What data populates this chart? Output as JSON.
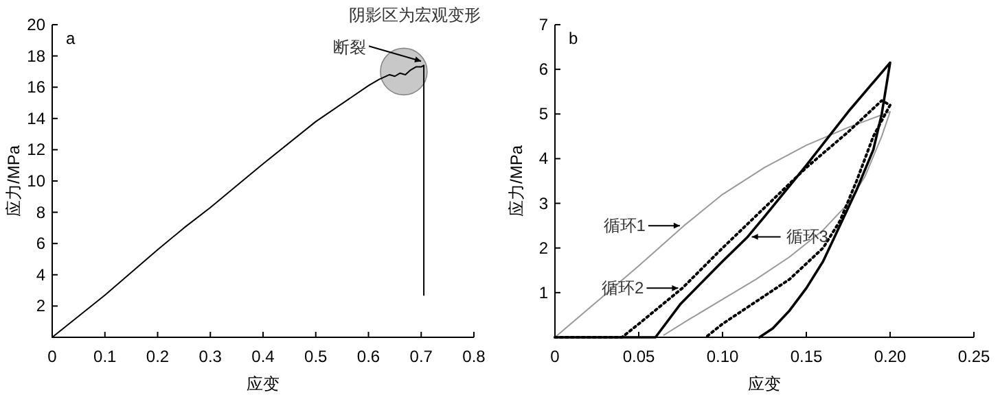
{
  "chart_data": [
    {
      "type": "line",
      "xlabel": "应变",
      "ylabel": "应力/MPa",
      "xlim": [
        0,
        0.8
      ],
      "ylim": [
        0,
        20
      ],
      "xticks": [
        {
          "value": 0,
          "label": "0"
        },
        0.1,
        0.2,
        0.3,
        0.4,
        0.5,
        0.6,
        0.7,
        0.8
      ],
      "yticks": [
        {
          "value": 0,
          "label": null
        },
        2,
        4,
        6,
        8,
        10,
        12,
        14,
        16,
        18,
        20
      ],
      "grid": false,
      "series": [
        {
          "color": "#000000",
          "line_style": "solid",
          "x": [
            0,
            0.1,
            0.2,
            0.25,
            0.3,
            0.4,
            0.5,
            0.6,
            0.62,
            0.64,
            0.65,
            0.66,
            0.67,
            0.68,
            0.69,
            0.7,
            0.705,
            0.705
          ],
          "values": [
            0,
            2.7,
            5.6,
            7,
            8.3,
            11.1,
            13.8,
            16.1,
            16.5,
            16.8,
            16.7,
            16.9,
            16.8,
            17.1,
            17.3,
            17.3,
            17.4,
            2.7
          ]
        }
      ],
      "annotations": [
        "a",
        {
          "text": "阴影区为宏观变形",
          "x": 0.667,
          "y": 17
        },
        {
          "text": "断裂",
          "x": 0.705,
          "y": 17.4
        }
      ]
    },
    {
      "type": "line",
      "xlabel": "应变",
      "ylabel": "应力/MPa",
      "xlim": [
        0,
        0.25
      ],
      "ylim": [
        0,
        7
      ],
      "xticks": [
        {
          "value": 0,
          "label": "0"
        },
        {
          "value": 0.05,
          "label": "0.05"
        },
        {
          "value": 0.1,
          "label": "0.10"
        },
        {
          "value": 0.15,
          "label": "0.15"
        },
        {
          "value": 0.2,
          "label": "0.20"
        },
        {
          "value": 0.25,
          "label": "0.25"
        }
      ],
      "yticks": [
        {
          "value": 0,
          "label": null
        },
        1,
        2,
        3,
        4,
        5,
        6,
        7
      ],
      "grid": false,
      "series": [
        {
          "color": "#999999",
          "line_style": "solid",
          "x": [
            0,
            0.025,
            0.05,
            0.077,
            0.1,
            0.125,
            0.15,
            0.175,
            0.2,
            0.195,
            0.185,
            0.175,
            0.16,
            0.14,
            0.12,
            0.1,
            0.08,
            0.065
          ],
          "values": [
            0,
            0.8,
            1.6,
            2.5,
            3.2,
            3.8,
            4.3,
            4.7,
            5.05,
            4.5,
            3.6,
            3,
            2.4,
            1.8,
            1.3,
            0.85,
            0.4,
            0.05
          ]
        },
        {
          "color": "#000000",
          "line_style": "dotted",
          "x": [
            0,
            0.04,
            0.05,
            0.076,
            0.1,
            0.125,
            0.15,
            0.175,
            0.195,
            0.2,
            0.19,
            0.18,
            0.17,
            0.16,
            0.14,
            0.12,
            0.1,
            0.09
          ],
          "values": [
            0,
            0,
            0.3,
            1.1,
            2,
            2.9,
            3.8,
            4.6,
            5.3,
            5.2,
            4.5,
            3.5,
            2.6,
            2,
            1.3,
            0.8,
            0.3,
            0
          ]
        },
        {
          "color": "#000000",
          "line_style": "solid",
          "x": [
            0,
            0.06,
            0.075,
            0.1,
            0.115,
            0.125,
            0.15,
            0.175,
            0.2,
            0.195,
            0.19,
            0.18,
            0.17,
            0.16,
            0.15,
            0.14,
            0.13,
            0.122
          ],
          "values": [
            0,
            0,
            0.75,
            1.7,
            2.25,
            2.7,
            3.85,
            5.05,
            6.15,
            5,
            4.2,
            3.3,
            2.5,
            1.7,
            1.1,
            0.6,
            0.2,
            0
          ]
        }
      ],
      "annotations": [
        "b",
        {
          "text": "循环1",
          "x": 0.077,
          "y": 2.5
        },
        {
          "text": "循环2",
          "x": 0.076,
          "y": 1.1
        },
        {
          "text": "循环3",
          "x": 0.115,
          "y": 2.25
        }
      ]
    }
  ]
}
